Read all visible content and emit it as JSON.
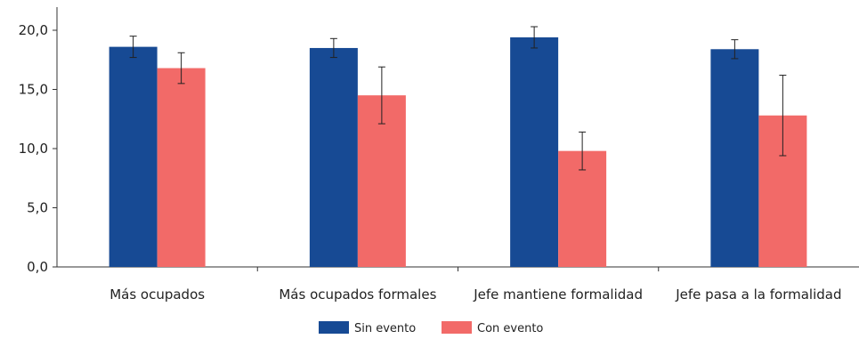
{
  "chart_data": {
    "type": "bar",
    "title": "",
    "xlabel": "",
    "ylabel": "",
    "ylim": [
      0,
      20
    ],
    "yticks": [
      0,
      5,
      10,
      15,
      20
    ],
    "ytick_labels": [
      "0,0",
      "5,0",
      "10,0",
      "15,0",
      "20,0"
    ],
    "categories": [
      "Más ocupados",
      "Más ocupados formales",
      "Jefe mantiene formalidad",
      "Jefe pasa a la formalidad"
    ],
    "series": [
      {
        "name": "Sin evento",
        "color": "#174a94",
        "values": [
          18.6,
          18.5,
          19.4,
          18.4
        ],
        "err_low": [
          17.7,
          17.7,
          18.5,
          17.6
        ],
        "err_high": [
          19.5,
          19.3,
          20.3,
          19.2
        ]
      },
      {
        "name": "Con evento",
        "color": "#f26a68",
        "values": [
          16.8,
          14.5,
          9.8,
          12.8
        ],
        "err_low": [
          15.5,
          12.1,
          8.2,
          9.4
        ],
        "err_high": [
          18.1,
          16.9,
          11.4,
          16.2
        ]
      }
    ],
    "grid": false,
    "legend_position": "bottom-center"
  }
}
